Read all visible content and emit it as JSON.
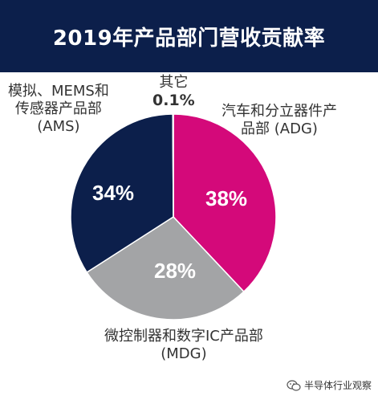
{
  "chart_data": {
    "type": "pie",
    "title": "2019年产品部门营收贡献率",
    "slices": [
      {
        "name_lines": [
          "汽车和分立器件产",
          "品部 (ADG)"
        ],
        "value": 38,
        "label": "38%",
        "color": "#d4097a"
      },
      {
        "name_lines": [
          "微控制器和数字IC产品部",
          "(MDG)"
        ],
        "value": 28,
        "label": "28%",
        "color": "#a3a4a6"
      },
      {
        "name_lines": [
          "模拟、MEMS和",
          "传感器产品部",
          "(AMS)"
        ],
        "value": 34,
        "label": "34%",
        "color": "#0c1f4b"
      },
      {
        "name_lines": [
          "其它"
        ],
        "value": 0.1,
        "label": "0.1%",
        "color": "#6e6f71"
      }
    ]
  },
  "watermark": {
    "text": "半导体行业观察"
  }
}
